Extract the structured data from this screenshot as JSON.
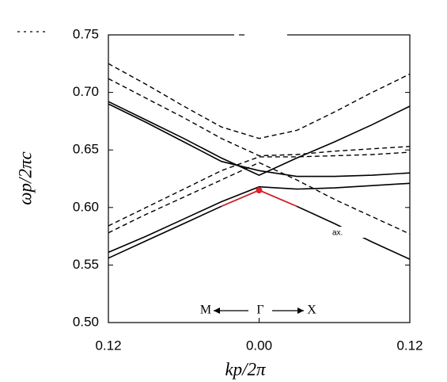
{
  "chart_data": {
    "type": "line",
    "x_label": "kp/2π",
    "y_label": "ωp/2πc",
    "x": [
      -0.12,
      -0.09,
      -0.06,
      -0.03,
      0,
      0.03,
      0.06,
      0.09,
      0.12
    ],
    "series": [
      {
        "color": "#000000",
        "dashed": true,
        "values": [
          0.725,
          0.707,
          0.688,
          0.67,
          0.66,
          0.667,
          0.683,
          0.7,
          0.716
        ]
      },
      {
        "color": "#000000",
        "dashed": true,
        "values": [
          0.712,
          0.695,
          0.678,
          0.66,
          0.645,
          0.646,
          0.649,
          0.651,
          0.653
        ]
      },
      {
        "color": "#000000",
        "dashed": true,
        "values": [
          0.584,
          0.6,
          0.616,
          0.632,
          0.644,
          0.644,
          0.645,
          0.646,
          0.648
        ]
      },
      {
        "color": "#000000",
        "dashed": true,
        "values": [
          0.578,
          0.594,
          0.609,
          0.624,
          0.639,
          0.624,
          0.607,
          0.592,
          0.577
        ]
      },
      {
        "color": "#000000",
        "dashed": false,
        "values": [
          0.692,
          0.676,
          0.66,
          0.643,
          0.628,
          0.643,
          0.657,
          0.672,
          0.688
        ]
      },
      {
        "color": "#000000",
        "dashed": false,
        "values": [
          0.69,
          0.674,
          0.657,
          0.64,
          0.632,
          0.627,
          0.627,
          0.628,
          0.63
        ]
      },
      {
        "color": "#000000",
        "dashed": false,
        "values": [
          0.561,
          0.575,
          0.59,
          0.605,
          0.618,
          0.616,
          0.617,
          0.619,
          0.621
        ]
      },
      {
        "color": "#000000",
        "dashed": false,
        "values": [
          0.556,
          0.571,
          0.586,
          0.601,
          0.615,
          0.601,
          0.586,
          0.57,
          0.555
        ]
      },
      {
        "color": "#e0202a",
        "dashed": false,
        "values": [
          null,
          null,
          null,
          0.601,
          0.615,
          0.601,
          null,
          null,
          null
        ]
      }
    ],
    "marker": {
      "x": 0,
      "y": 0.615,
      "color": "#e0202a"
    },
    "annotations": [
      "M",
      "Γ",
      "X",
      "ax."
    ],
    "xlim": [
      -0.12,
      0.12
    ],
    "ylim": [
      0.5,
      0.75
    ],
    "xticks": [
      {
        "value": -0.12,
        "label": "0.12"
      },
      {
        "value": 0,
        "label": "0.00"
      },
      0.12
    ],
    "yticks": [
      {
        "value": 0.5,
        "label": "0.50"
      },
      0.55,
      {
        "value": 0.6,
        "label": "0.60"
      },
      0.65,
      {
        "value": 0.7,
        "label": "0.70"
      },
      0.75
    ]
  }
}
